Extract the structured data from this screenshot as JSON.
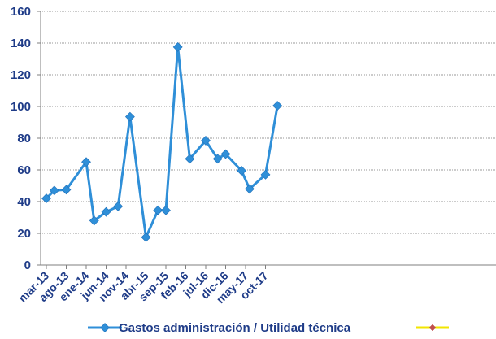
{
  "chart_data": {
    "type": "line",
    "title": "",
    "xlabel": "",
    "ylabel": "",
    "ylim": [
      0,
      160
    ],
    "yticks": [
      0,
      20,
      40,
      60,
      80,
      100,
      120,
      140,
      160
    ],
    "grid": true,
    "legend_placement": "bottom",
    "x_tick_labels": [
      "mar-13",
      "ago-13",
      "ene-14",
      "jun-14",
      "nov-14",
      "abr-15",
      "sep-15",
      "feb-16",
      "jul-16",
      "dic-16",
      "may-17",
      "oct-17"
    ],
    "series": [
      {
        "name": "Gastos  administración / Utilidad técnica",
        "color": "#2f8fd8",
        "marker": "diamond",
        "points": [
          {
            "x": "mar-13",
            "y": 42
          },
          {
            "x": "may-13",
            "y": 47
          },
          {
            "x": "ago-13",
            "y": 47.5
          },
          {
            "x": "ene-14",
            "y": 65
          },
          {
            "x": "mar-14",
            "y": 28
          },
          {
            "x": "jun-14",
            "y": 33.5
          },
          {
            "x": "sep-14",
            "y": 37
          },
          {
            "x": "dic-14",
            "y": 93.5
          },
          {
            "x": "abr-15",
            "y": 17.5
          },
          {
            "x": "jul-15",
            "y": 34.5
          },
          {
            "x": "sep-15",
            "y": 34.5
          },
          {
            "x": "dic-15",
            "y": 137.5
          },
          {
            "x": "mar-16",
            "y": 67
          },
          {
            "x": "jul-16",
            "y": 78.5
          },
          {
            "x": "oct-16",
            "y": 67
          },
          {
            "x": "dic-16",
            "y": 70
          },
          {
            "x": "abr-17",
            "y": 59.5
          },
          {
            "x": "jun-17",
            "y": 48
          },
          {
            "x": "oct-17",
            "y": 57
          },
          {
            "x": "ene-18",
            "y": 100.5
          }
        ]
      },
      {
        "name": "",
        "color": "#f2e600",
        "marker_color": "#c0504d",
        "marker": "diamond",
        "points": []
      }
    ]
  }
}
